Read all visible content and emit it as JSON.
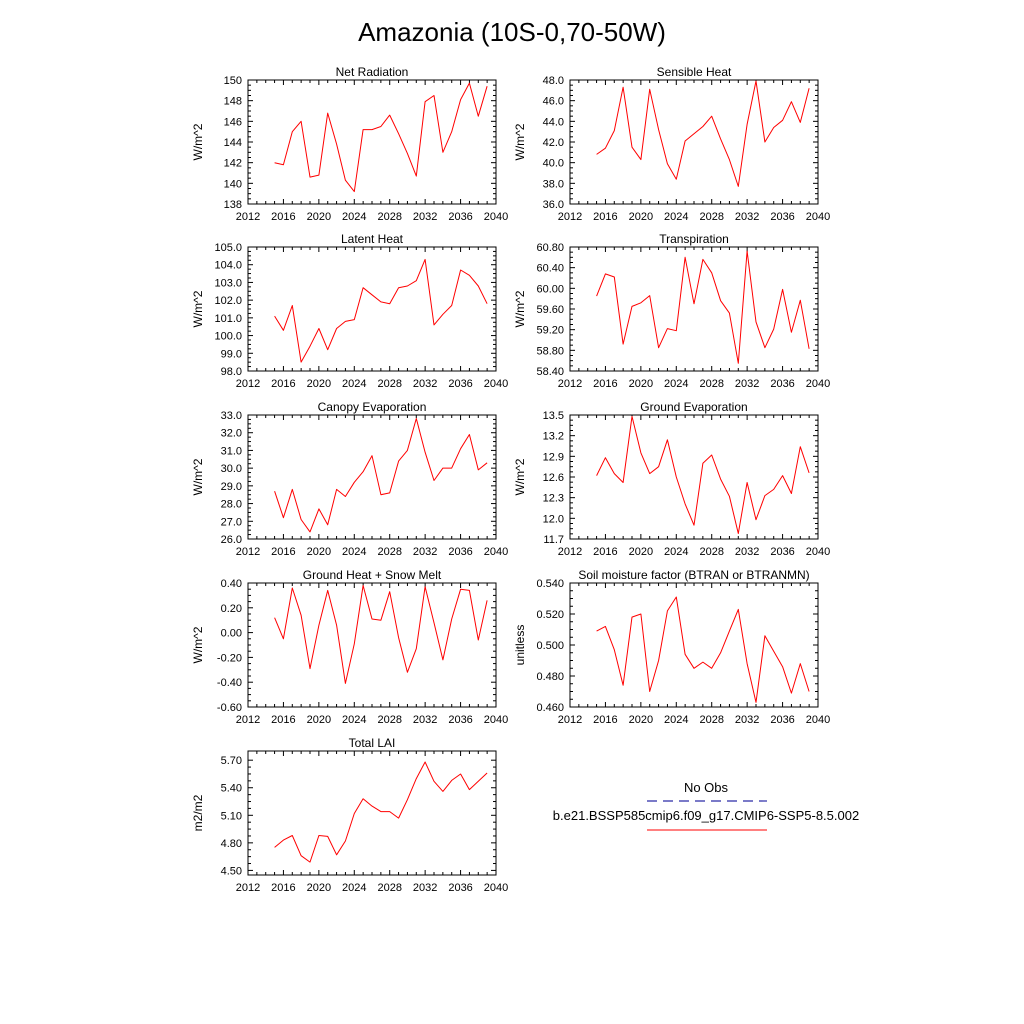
{
  "figure": {
    "title": "Amazonia (10S-0,70-50W)"
  },
  "legend": {
    "entries": [
      {
        "label": "No Obs",
        "color": "#2a2aa8",
        "dash": "dashed"
      },
      {
        "label": "b.e21.BSSP585cmip6.f09_g17.CMIP6-SSP5-8.5.002",
        "color": "#ff0000",
        "dash": "solid"
      }
    ]
  },
  "chart_data": [
    {
      "type": "line",
      "title": "Net Radiation",
      "ylabel": "W/m^2",
      "xlabel": "",
      "xlim": [
        2012,
        2040
      ],
      "xticks": [
        2012,
        2016,
        2020,
        2024,
        2028,
        2032,
        2036,
        2040
      ],
      "ylim": [
        138,
        150
      ],
      "yticks": [
        "138",
        "140",
        "142",
        "144",
        "146",
        "148",
        "150"
      ],
      "series": [
        {
          "name": "b.e21.BSSP585cmip6.f09_g17.CMIP6-SSP5-8.5.002",
          "color": "#ff0000",
          "x": [
            2015,
            2016,
            2017,
            2018,
            2019,
            2020,
            2021,
            2022,
            2023,
            2024,
            2025,
            2026,
            2027,
            2028,
            2029,
            2030,
            2031,
            2032,
            2033,
            2034,
            2035,
            2036,
            2037,
            2038,
            2039
          ],
          "y": [
            142.0,
            141.8,
            145.0,
            146.0,
            140.6,
            140.8,
            146.8,
            143.8,
            140.3,
            139.2,
            145.2,
            145.2,
            145.5,
            146.6,
            144.8,
            142.9,
            140.7,
            147.9,
            148.5,
            143.0,
            145.0,
            148.1,
            149.7,
            146.5,
            149.4
          ]
        }
      ]
    },
    {
      "type": "line",
      "title": "Sensible Heat",
      "ylabel": "W/m^2",
      "xlabel": "",
      "xlim": [
        2012,
        2040
      ],
      "xticks": [
        2012,
        2016,
        2020,
        2024,
        2028,
        2032,
        2036,
        2040
      ],
      "ylim": [
        36.0,
        48.0
      ],
      "yticks": [
        "36.0",
        "38.0",
        "40.0",
        "42.0",
        "44.0",
        "46.0",
        "48.0"
      ],
      "series": [
        {
          "name": "b.e21.BSSP585cmip6.f09_g17.CMIP6-SSP5-8.5.002",
          "color": "#ff0000",
          "x": [
            2015,
            2016,
            2017,
            2018,
            2019,
            2020,
            2021,
            2022,
            2023,
            2024,
            2025,
            2026,
            2027,
            2028,
            2029,
            2030,
            2031,
            2032,
            2033,
            2034,
            2035,
            2036,
            2037,
            2038,
            2039
          ],
          "y": [
            40.8,
            41.4,
            43.1,
            47.3,
            41.5,
            40.3,
            47.1,
            43.2,
            39.9,
            38.4,
            42.1,
            42.8,
            43.5,
            44.5,
            42.3,
            40.3,
            37.7,
            43.7,
            47.9,
            42.0,
            43.4,
            44.1,
            45.9,
            43.9,
            47.2
          ]
        }
      ]
    },
    {
      "type": "line",
      "title": "Latent Heat",
      "ylabel": "W/m^2",
      "xlabel": "",
      "xlim": [
        2012,
        2040
      ],
      "xticks": [
        2012,
        2016,
        2020,
        2024,
        2028,
        2032,
        2036,
        2040
      ],
      "ylim": [
        98.0,
        105.0
      ],
      "yticks": [
        "98.0",
        "99.0",
        "100.0",
        "101.0",
        "102.0",
        "103.0",
        "104.0",
        "105.0"
      ],
      "series": [
        {
          "name": "b.e21.BSSP585cmip6.f09_g17.CMIP6-SSP5-8.5.002",
          "color": "#ff0000",
          "x": [
            2015,
            2016,
            2017,
            2018,
            2019,
            2020,
            2021,
            2022,
            2023,
            2024,
            2025,
            2026,
            2027,
            2028,
            2029,
            2030,
            2031,
            2032,
            2033,
            2034,
            2035,
            2036,
            2037,
            2038,
            2039
          ],
          "y": [
            101.1,
            100.3,
            101.7,
            98.5,
            99.4,
            100.4,
            99.2,
            100.4,
            100.8,
            100.9,
            102.7,
            102.3,
            101.9,
            101.8,
            102.7,
            102.8,
            103.1,
            104.3,
            100.6,
            101.2,
            101.7,
            103.7,
            103.4,
            102.8,
            101.8
          ]
        }
      ]
    },
    {
      "type": "line",
      "title": "Transpiration",
      "ylabel": "W/m^2",
      "xlabel": "",
      "xlim": [
        2012,
        2040
      ],
      "xticks": [
        2012,
        2016,
        2020,
        2024,
        2028,
        2032,
        2036,
        2040
      ],
      "ylim": [
        58.4,
        60.8
      ],
      "yticks": [
        "58.40",
        "58.80",
        "59.20",
        "59.60",
        "60.00",
        "60.40",
        "60.80"
      ],
      "series": [
        {
          "name": "b.e21.BSSP585cmip6.f09_g17.CMIP6-SSP5-8.5.002",
          "color": "#ff0000",
          "x": [
            2015,
            2016,
            2017,
            2018,
            2019,
            2020,
            2021,
            2022,
            2023,
            2024,
            2025,
            2026,
            2027,
            2028,
            2029,
            2030,
            2031,
            2032,
            2033,
            2034,
            2035,
            2036,
            2037,
            2038,
            2039
          ],
          "y": [
            59.85,
            60.28,
            60.22,
            58.92,
            59.65,
            59.72,
            59.86,
            58.85,
            59.22,
            59.18,
            60.6,
            59.7,
            60.56,
            60.3,
            59.76,
            59.52,
            58.55,
            60.72,
            59.35,
            58.85,
            59.21,
            59.98,
            59.15,
            59.77,
            58.83
          ]
        }
      ]
    },
    {
      "type": "line",
      "title": "Canopy Evaporation",
      "ylabel": "W/m^2",
      "xlabel": "",
      "xlim": [
        2012,
        2040
      ],
      "xticks": [
        2012,
        2016,
        2020,
        2024,
        2028,
        2032,
        2036,
        2040
      ],
      "ylim": [
        26.0,
        33.0
      ],
      "yticks": [
        "26.0",
        "27.0",
        "28.0",
        "29.0",
        "30.0",
        "31.0",
        "32.0",
        "33.0"
      ],
      "series": [
        {
          "name": "b.e21.BSSP585cmip6.f09_g17.CMIP6-SSP5-8.5.002",
          "color": "#ff0000",
          "x": [
            2015,
            2016,
            2017,
            2018,
            2019,
            2020,
            2021,
            2022,
            2023,
            2024,
            2025,
            2026,
            2027,
            2028,
            2029,
            2030,
            2031,
            2032,
            2033,
            2034,
            2035,
            2036,
            2037,
            2038,
            2039
          ],
          "y": [
            28.7,
            27.2,
            28.8,
            27.1,
            26.4,
            27.7,
            26.8,
            28.8,
            28.4,
            29.2,
            29.8,
            30.7,
            28.5,
            28.6,
            30.4,
            31.0,
            32.8,
            30.9,
            29.3,
            30.0,
            30.0,
            31.1,
            31.9,
            29.9,
            30.3
          ]
        }
      ]
    },
    {
      "type": "line",
      "title": "Ground Evaporation",
      "ylabel": "W/m^2",
      "xlabel": "",
      "xlim": [
        2012,
        2040
      ],
      "xticks": [
        2012,
        2016,
        2020,
        2024,
        2028,
        2032,
        2036,
        2040
      ],
      "ylim": [
        11.7,
        13.5
      ],
      "yticks": [
        "11.7",
        "12.0",
        "12.3",
        "12.6",
        "12.9",
        "13.2",
        "13.5"
      ],
      "series": [
        {
          "name": "b.e21.BSSP585cmip6.f09_g17.CMIP6-SSP5-8.5.002",
          "color": "#ff0000",
          "x": [
            2015,
            2016,
            2017,
            2018,
            2019,
            2020,
            2021,
            2022,
            2023,
            2024,
            2025,
            2026,
            2027,
            2028,
            2029,
            2030,
            2031,
            2032,
            2033,
            2034,
            2035,
            2036,
            2037,
            2038,
            2039
          ],
          "y": [
            12.62,
            12.88,
            12.65,
            12.52,
            13.48,
            12.95,
            12.65,
            12.75,
            13.14,
            12.6,
            12.21,
            11.9,
            12.8,
            12.92,
            12.57,
            12.32,
            11.78,
            12.52,
            11.98,
            12.33,
            12.42,
            12.62,
            12.36,
            13.04,
            12.66
          ]
        }
      ]
    },
    {
      "type": "line",
      "title": "Ground Heat + Snow Melt",
      "ylabel": "W/m^2",
      "xlabel": "",
      "xlim": [
        2012,
        2040
      ],
      "xticks": [
        2012,
        2016,
        2020,
        2024,
        2028,
        2032,
        2036,
        2040
      ],
      "ylim": [
        -0.6,
        0.4
      ],
      "yticks": [
        "-0.60",
        "-0.40",
        "-0.20",
        "0.00",
        "0.20",
        "0.40"
      ],
      "series": [
        {
          "name": "b.e21.BSSP585cmip6.f09_g17.CMIP6-SSP5-8.5.002",
          "color": "#ff0000",
          "x": [
            2015,
            2016,
            2017,
            2018,
            2019,
            2020,
            2021,
            2022,
            2023,
            2024,
            2025,
            2026,
            2027,
            2028,
            2029,
            2030,
            2031,
            2032,
            2033,
            2034,
            2035,
            2036,
            2037,
            2038,
            2039
          ],
          "y": [
            0.12,
            -0.05,
            0.36,
            0.14,
            -0.29,
            0.06,
            0.34,
            0.06,
            -0.41,
            -0.09,
            0.38,
            0.11,
            0.1,
            0.33,
            -0.04,
            -0.32,
            -0.13,
            0.37,
            0.08,
            -0.22,
            0.11,
            0.35,
            0.34,
            -0.06,
            0.26
          ]
        }
      ]
    },
    {
      "type": "line",
      "title": "Soil moisture factor (BTRAN or BTRANMN)",
      "ylabel": "unitless",
      "xlabel": "",
      "xlim": [
        2012,
        2040
      ],
      "xticks": [
        2012,
        2016,
        2020,
        2024,
        2028,
        2032,
        2036,
        2040
      ],
      "ylim": [
        0.46,
        0.54
      ],
      "yticks": [
        "0.460",
        "0.480",
        "0.500",
        "0.520",
        "0.540"
      ],
      "series": [
        {
          "name": "b.e21.BSSP585cmip6.f09_g17.CMIP6-SSP5-8.5.002",
          "color": "#ff0000",
          "x": [
            2015,
            2016,
            2017,
            2018,
            2019,
            2020,
            2021,
            2022,
            2023,
            2024,
            2025,
            2026,
            2027,
            2028,
            2029,
            2030,
            2031,
            2032,
            2033,
            2034,
            2035,
            2036,
            2037,
            2038,
            2039
          ],
          "y": [
            0.509,
            0.512,
            0.497,
            0.474,
            0.518,
            0.52,
            0.47,
            0.49,
            0.522,
            0.531,
            0.494,
            0.485,
            0.489,
            0.485,
            0.495,
            0.509,
            0.523,
            0.488,
            0.463,
            0.506,
            0.496,
            0.486,
            0.469,
            0.488,
            0.47
          ]
        }
      ]
    },
    {
      "type": "line",
      "title": "Total LAI",
      "ylabel": "m2/m2",
      "xlabel": "",
      "xlim": [
        2012,
        2040
      ],
      "xticks": [
        2012,
        2016,
        2020,
        2024,
        2028,
        2032,
        2036,
        2040
      ],
      "ylim": [
        4.45,
        5.8
      ],
      "yticks": [
        "4.50",
        "4.80",
        "5.10",
        "5.40",
        "5.70"
      ],
      "series": [
        {
          "name": "b.e21.BSSP585cmip6.f09_g17.CMIP6-SSP5-8.5.002",
          "color": "#ff0000",
          "x": [
            2015,
            2016,
            2017,
            2018,
            2019,
            2020,
            2021,
            2022,
            2023,
            2024,
            2025,
            2026,
            2027,
            2028,
            2029,
            2030,
            2031,
            2032,
            2033,
            2034,
            2035,
            2036,
            2037,
            2038,
            2039
          ],
          "y": [
            4.75,
            4.83,
            4.88,
            4.66,
            4.59,
            4.88,
            4.87,
            4.67,
            4.82,
            5.12,
            5.28,
            5.2,
            5.14,
            5.14,
            5.07,
            5.27,
            5.5,
            5.68,
            5.47,
            5.36,
            5.48,
            5.55,
            5.38,
            5.47,
            5.56
          ]
        }
      ]
    }
  ]
}
